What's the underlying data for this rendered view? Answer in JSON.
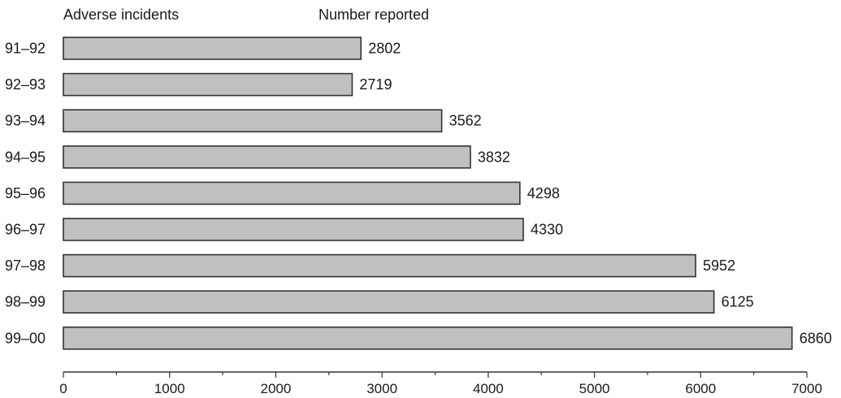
{
  "header": {
    "left_label": "Adverse incidents",
    "right_label": "Number reported"
  },
  "chart_data": {
    "type": "bar",
    "orientation": "horizontal",
    "categories": [
      "91–92",
      "92–93",
      "93–94",
      "94–95",
      "95–96",
      "96–97",
      "97–98",
      "98–99",
      "99–00"
    ],
    "values": [
      2802,
      2719,
      3562,
      3832,
      4298,
      4330,
      5952,
      6125,
      6860
    ],
    "xlim": [
      0,
      7000
    ],
    "xticks": [
      0,
      1000,
      2000,
      3000,
      4000,
      5000,
      6000,
      7000
    ],
    "xtick_labels": [
      "0",
      "1000",
      "2000",
      "3000",
      "4000",
      "5000",
      "6000",
      "7000"
    ],
    "bar_color": "#c0c0c0",
    "grid": false,
    "legend": "none"
  }
}
